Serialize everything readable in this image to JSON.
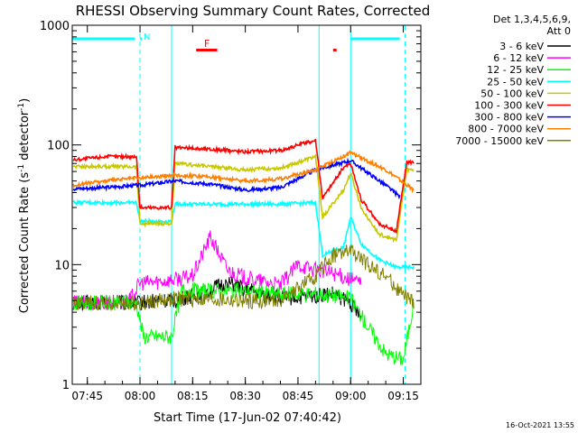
{
  "chart_data": {
    "type": "line",
    "title": "RHESSI Observing Summary Count Rates, Corrected",
    "xlabel": "Start Time (17-Jun-02 07:40:42)",
    "ylabel": "Corrected Count Rate (s",
    "ylabel_sup": "-1",
    "ylabel_mid": " detector",
    "ylabel_sup2": "-1",
    "ylabel_end": ")",
    "y_scale": "log",
    "ylim": [
      1,
      1000
    ],
    "xlim": [
      "07:40:42",
      "09:20:00"
    ],
    "x_ticks": [
      "07:45",
      "08:00",
      "08:15",
      "08:30",
      "08:45",
      "09:00",
      "09:15"
    ],
    "y_ticks": [
      "1",
      "10",
      "100",
      "1000"
    ],
    "legend_header": [
      "Det 1,3,4,5,6,9,",
      "Att 0"
    ],
    "legend_position": "right",
    "footer_date": "16-Oct-2021 13:55",
    "annotations": [
      {
        "text": "N",
        "color": "#00ffff"
      },
      {
        "text": "F",
        "color": "#ff0000"
      }
    ],
    "bars": [
      {
        "kind": "night",
        "color": "#00ffff",
        "x_start": "07:40:42",
        "x_end": "07:58:30",
        "y": 770
      },
      {
        "kind": "night",
        "color": "#00ffff",
        "x_start": "08:00:00",
        "x_end": "08:00:30",
        "y": 770
      },
      {
        "kind": "night",
        "color": "#00ffff",
        "x_start": "09:00:00",
        "x_end": "09:14:00",
        "y": 770
      },
      {
        "kind": "flare",
        "color": "#ff0000",
        "x_start": "08:16:00",
        "x_end": "08:22:00",
        "y": 620
      },
      {
        "kind": "flare",
        "color": "#ff0000",
        "x_start": "08:55:00",
        "x_end": "08:56:00",
        "y": 620
      }
    ],
    "vlines": [
      {
        "x": "08:00:00",
        "color": "#00ffff",
        "dash": true
      },
      {
        "x": "08:09:00",
        "color": "#00ffff",
        "dash": false
      },
      {
        "x": "08:51:00",
        "color": "#00ffff",
        "dash": false
      },
      {
        "x": "09:00:00",
        "color": "#00ffff",
        "dash": false
      },
      {
        "x": "09:15:30",
        "color": "#00ffff",
        "dash": true
      }
    ],
    "series": [
      {
        "name": "3 - 6 keV",
        "color": "#000000",
        "x": [
          "07:41",
          "07:50",
          "07:59",
          "08:05",
          "08:10",
          "08:15",
          "08:20",
          "08:25",
          "08:30",
          "08:35",
          "08:40",
          "08:45",
          "08:50",
          "08:55",
          "09:00",
          "09:03"
        ],
        "y": [
          4.8,
          4.8,
          4.8,
          5,
          5,
          5.5,
          6.2,
          7,
          6.2,
          5.7,
          5.3,
          5.3,
          5.5,
          5.7,
          4.8,
          3.5
        ]
      },
      {
        "name": "6 - 12 keV",
        "color": "#ff00ff",
        "x": [
          "07:41",
          "07:50",
          "07:57",
          "08:00",
          "08:05",
          "08:10",
          "08:15",
          "08:20",
          "08:25",
          "08:30",
          "08:35",
          "08:40",
          "08:45",
          "08:50",
          "08:55",
          "09:00",
          "09:03"
        ],
        "y": [
          4.8,
          4.8,
          5,
          7,
          7.2,
          7.5,
          8,
          17,
          9,
          7.7,
          7.2,
          6.7,
          10,
          9,
          8.5,
          7.5,
          7
        ]
      },
      {
        "name": "12 - 25 keV",
        "color": "#00ff00",
        "x": [
          "07:41",
          "07:50",
          "07:59",
          "08:01",
          "08:05",
          "08:09",
          "08:12",
          "08:20",
          "08:30",
          "08:40",
          "08:50",
          "08:55",
          "09:00",
          "09:05",
          "09:10",
          "09:15",
          "09:18"
        ],
        "y": [
          4.8,
          4.8,
          4.8,
          2.5,
          2.5,
          2.5,
          6.2,
          6,
          6,
          5.7,
          5.7,
          5.5,
          5.2,
          3,
          1.8,
          1.6,
          4.8
        ]
      },
      {
        "name": "25 - 50 keV",
        "color": "#00ffff",
        "x": [
          "07:41",
          "07:50",
          "07:59",
          "08:00",
          "08:05",
          "08:09",
          "08:10",
          "08:20",
          "08:30",
          "08:40",
          "08:50",
          "08:52",
          "08:58",
          "09:00",
          "09:03",
          "09:08",
          "09:13",
          "09:18"
        ],
        "y": [
          33,
          33,
          33,
          23,
          23,
          23,
          32,
          32,
          32,
          32,
          33,
          12,
          14,
          25,
          15,
          11,
          9.5,
          9.5
        ]
      },
      {
        "name": "50 - 100 keV",
        "color": "#c8c800",
        "x": [
          "07:41",
          "07:50",
          "07:59",
          "08:00",
          "08:05",
          "08:09",
          "08:10",
          "08:20",
          "08:30",
          "08:40",
          "08:50",
          "08:52",
          "08:58",
          "09:00",
          "09:03",
          "09:08",
          "09:13",
          "09:16",
          "09:18"
        ],
        "y": [
          66,
          66,
          66,
          22,
          22,
          22,
          70,
          66,
          62,
          64,
          80,
          25,
          42,
          58,
          30,
          18,
          16,
          62,
          62
        ]
      },
      {
        "name": "100 - 300 keV",
        "color": "#ff0000",
        "x": [
          "07:41",
          "07:50",
          "07:59",
          "08:00",
          "08:05",
          "08:09",
          "08:10",
          "08:20",
          "08:30",
          "08:40",
          "08:50",
          "08:52",
          "08:58",
          "09:00",
          "09:03",
          "09:08",
          "09:13",
          "09:16",
          "09:18"
        ],
        "y": [
          75,
          80,
          80,
          30,
          30,
          30,
          95,
          92,
          88,
          90,
          110,
          36,
          65,
          70,
          35,
          22,
          19,
          72,
          72
        ]
      },
      {
        "name": "300 - 800 keV",
        "color": "#0000ff",
        "x": [
          "07:41",
          "07:50",
          "07:59",
          "08:00",
          "08:10",
          "08:20",
          "08:30",
          "08:40",
          "08:50",
          "09:00",
          "09:10",
          "09:14"
        ],
        "y": [
          43,
          44,
          46,
          46,
          50,
          47,
          42,
          44,
          62,
          74,
          46,
          37
        ]
      },
      {
        "name": "800 - 7000 keV",
        "color": "#ff8000",
        "x": [
          "07:41",
          "07:50",
          "07:59",
          "08:00",
          "08:10",
          "08:20",
          "08:30",
          "08:40",
          "08:50",
          "09:00",
          "09:10",
          "09:18"
        ],
        "y": [
          46,
          50,
          53,
          53,
          56,
          54,
          50,
          52,
          62,
          86,
          62,
          42
        ]
      },
      {
        "name": "7000 - 15000 keV",
        "color": "#808000",
        "x": [
          "07:41",
          "07:50",
          "07:59",
          "08:05",
          "08:10",
          "08:20",
          "08:30",
          "08:40",
          "08:50",
          "08:55",
          "09:00",
          "09:05",
          "09:10",
          "09:15",
          "09:18"
        ],
        "y": [
          4.8,
          4.8,
          4.8,
          5,
          5.2,
          5.1,
          4.9,
          5,
          8,
          12,
          13,
          10,
          8,
          5.5,
          4.8
        ]
      }
    ]
  }
}
